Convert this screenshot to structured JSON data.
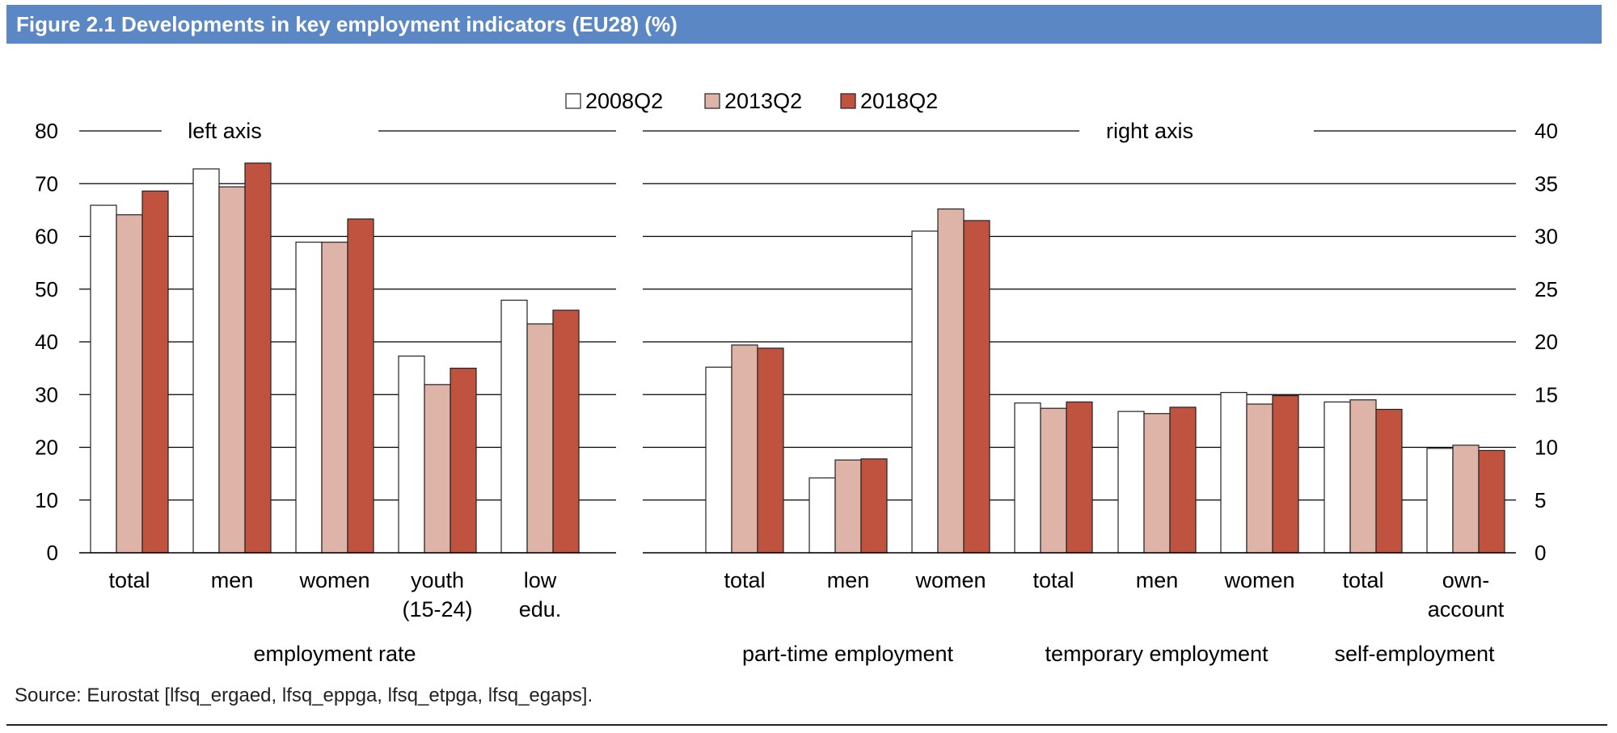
{
  "figure": {
    "title": "Figure 2.1 Developments in key employment indicators (EU28) (%)",
    "source": "Source: Eurostat [lfsq_ergaed, lfsq_eppga, lfsq_etpga, lfsq_egaps]."
  },
  "colors": {
    "title_bar": "#5b88c4",
    "series_2008Q2": "#ffffff",
    "series_2013Q2": "#dfb4a8",
    "series_2018Q2": "#bf5340"
  },
  "chart_data": {
    "type": "bar",
    "legend": [
      "2008Q2",
      "2013Q2",
      "2018Q2"
    ],
    "legend_position": "top-center",
    "left_axis": {
      "label": "left axis",
      "ylim": [
        0,
        80
      ],
      "ticks": [
        "0",
        "10",
        "20",
        "30",
        "40",
        "50",
        "60",
        "70",
        "80"
      ]
    },
    "right_axis": {
      "label": "right axis",
      "ylim": [
        0,
        40
      ],
      "ticks": [
        "0",
        "5",
        "10",
        "15",
        "20",
        "25",
        "30",
        "35",
        "40"
      ]
    },
    "grid": true,
    "groups": [
      {
        "name": "employment rate",
        "axis": "left",
        "categories": [
          {
            "label": [
              "total"
            ],
            "values": [
              65.9,
              64.1,
              68.6
            ]
          },
          {
            "label": [
              "men"
            ],
            "values": [
              72.8,
              69.4,
              73.9
            ]
          },
          {
            "label": [
              "women"
            ],
            "values": [
              58.9,
              58.9,
              63.3
            ]
          },
          {
            "label": [
              "youth",
              "(15-24)"
            ],
            "values": [
              37.3,
              31.9,
              35.0
            ]
          },
          {
            "label": [
              "low",
              "edu."
            ],
            "values": [
              47.9,
              43.4,
              46.0
            ]
          }
        ]
      },
      {
        "name": "part-time employment",
        "axis": "right",
        "categories": [
          {
            "label": [
              "total"
            ],
            "values": [
              17.6,
              19.7,
              19.4
            ]
          },
          {
            "label": [
              "men"
            ],
            "values": [
              7.1,
              8.8,
              8.9
            ]
          },
          {
            "label": [
              "women"
            ],
            "values": [
              30.5,
              32.6,
              31.5
            ]
          }
        ]
      },
      {
        "name": "temporary employment",
        "axis": "right",
        "categories": [
          {
            "label": [
              "total"
            ],
            "values": [
              14.2,
              13.7,
              14.3
            ]
          },
          {
            "label": [
              "men"
            ],
            "values": [
              13.4,
              13.2,
              13.8
            ]
          },
          {
            "label": [
              "women"
            ],
            "values": [
              15.2,
              14.1,
              14.9
            ]
          }
        ]
      },
      {
        "name": "self-employment",
        "axis": "right",
        "categories": [
          {
            "label": [
              "total"
            ],
            "values": [
              14.3,
              14.5,
              13.6
            ]
          },
          {
            "label": [
              "own-",
              "account"
            ],
            "values": [
              9.9,
              10.2,
              9.7
            ]
          }
        ]
      }
    ]
  }
}
